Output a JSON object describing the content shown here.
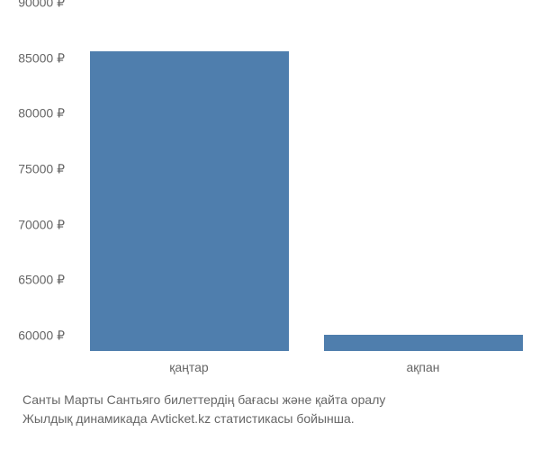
{
  "chart": {
    "type": "bar",
    "categories": [
      "қаңтар",
      "ақпан"
    ],
    "values": [
      87000,
      61500
    ],
    "ylim": [
      60000,
      90000
    ],
    "ytick_step": 5000,
    "ytick_suffix": " ₽",
    "bar_color": "#4f7ead",
    "bar_width_pct": 85,
    "tick_color": "#666666",
    "tick_fontsize": 14,
    "background_color": "#ffffff"
  },
  "caption": {
    "line1": "Санты Марты Сантьяго билеттердің бағасы және қайта оралу",
    "line2": "Жылдық динамикада Avticket.kz статистикасы бойынша.",
    "color": "#666666",
    "fontsize": 14
  }
}
